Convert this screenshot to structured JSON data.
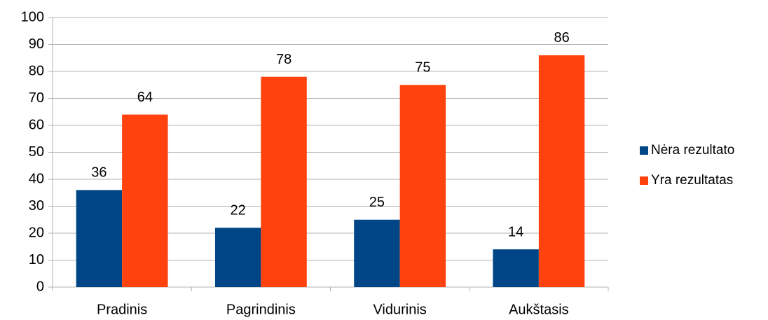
{
  "chart_data": {
    "type": "bar",
    "categories": [
      "Pradinis",
      "Pagrindinis",
      "Vidurinis",
      "Aukštasis"
    ],
    "series": [
      {
        "name": "Nėra rezultato",
        "color": "#004586",
        "values": [
          36,
          22,
          25,
          14
        ]
      },
      {
        "name": "Yra rezultatas",
        "color": "#ff420e",
        "values": [
          64,
          78,
          75,
          86
        ]
      }
    ],
    "ylim": [
      0,
      100
    ],
    "yticks": [
      0,
      10,
      20,
      30,
      40,
      50,
      60,
      70,
      80,
      90,
      100
    ],
    "grid": true,
    "legend": "right"
  }
}
